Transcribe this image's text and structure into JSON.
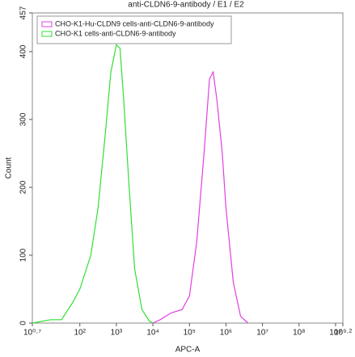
{
  "chart_data": {
    "type": "line",
    "title": "anti-CLDN6-9-antibody / E1 / E2",
    "x_label": "APC-A",
    "y_label": "Count",
    "xscale": "log",
    "xlim": [
      5.012,
      1584893192
    ],
    "xticks": [
      {
        "value": 5.012,
        "label": "10⁰·⁷"
      },
      {
        "value": 100,
        "label": "10²"
      },
      {
        "value": 1000,
        "label": "10³"
      },
      {
        "value": 10000,
        "label": "10⁴"
      },
      {
        "value": 100000,
        "label": "10⁵"
      },
      {
        "value": 1000000,
        "label": "10⁶"
      },
      {
        "value": 10000000,
        "label": "10⁷"
      },
      {
        "value": 100000000,
        "label": "10⁸"
      },
      {
        "value": 1000000000,
        "label": "10⁹"
      },
      {
        "value": 1584893192,
        "label": "10⁹·²"
      }
    ],
    "ylim": [
      0,
      457
    ],
    "yticks": [
      0,
      100,
      200,
      300,
      400,
      457
    ],
    "legend": "top-left",
    "series": [
      {
        "name": "CHO-K1-Hu-CLDN9 cells-anti-CLDN6-9-antibody",
        "color": "#e040e0",
        "x": [
          10000,
          15849,
          31623,
          63096,
          100000,
          158489,
          251189,
          354813,
          446684,
          562341,
          794328,
          1000000,
          1584893,
          2511886,
          3981072
        ],
        "values": [
          0,
          5,
          15,
          20,
          40,
          120,
          250,
          360,
          370,
          330,
          250,
          170,
          60,
          10,
          0
        ]
      },
      {
        "name": "CHO-K1 cells-anti-CLDN6-9-antibody",
        "color": "#30e030",
        "x": [
          5.012,
          15.8,
          31.6,
          63.1,
          100,
          200,
          316,
          501,
          708,
          1000,
          1259,
          1585,
          2239,
          3162,
          5012,
          7943,
          10000
        ],
        "values": [
          0,
          5,
          5,
          30,
          50,
          100,
          170,
          280,
          370,
          410,
          405,
          330,
          200,
          80,
          20,
          3,
          0
        ]
      }
    ]
  }
}
